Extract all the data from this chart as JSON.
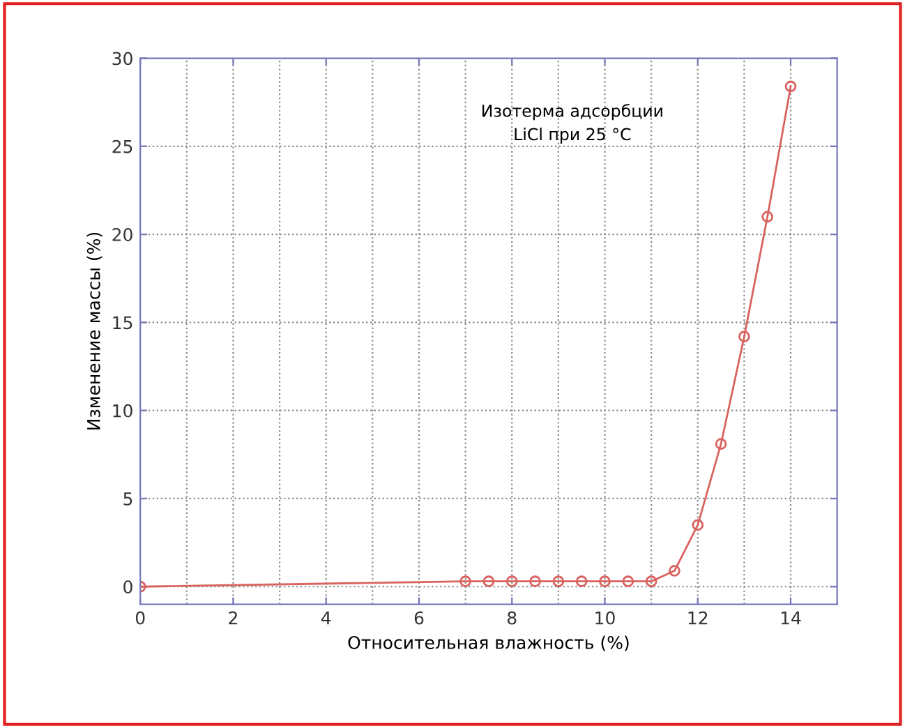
{
  "chart_data": {
    "type": "line",
    "xlabel": "Относительная влажность (%)",
    "ylabel": "Изменение массы (%)",
    "annotations": [
      "Изотерма адсорбции\nLiCl при 25 °C"
    ],
    "x": [
      0,
      7,
      7.5,
      8,
      8.5,
      9,
      9.5,
      10,
      10.5,
      11,
      11.5,
      12,
      12.5,
      13,
      13.5,
      14
    ],
    "series": [
      {
        "color": "#d9625e",
        "values": [
          0,
          0.3,
          0.3,
          0.3,
          0.3,
          0.3,
          0.3,
          0.3,
          0.3,
          0.3,
          0.9,
          3.5,
          8.1,
          14.2,
          21,
          28.4
        ]
      }
    ],
    "xlim": [
      0,
      15
    ],
    "ylim": [
      -1,
      30
    ],
    "xticks": [
      0,
      2,
      4,
      6,
      8,
      10,
      12,
      14
    ],
    "yticks": [
      0,
      5,
      10,
      15,
      20,
      25,
      30
    ],
    "grid": true,
    "marker": "circle",
    "line_style": "solid",
    "legend": false
  }
}
